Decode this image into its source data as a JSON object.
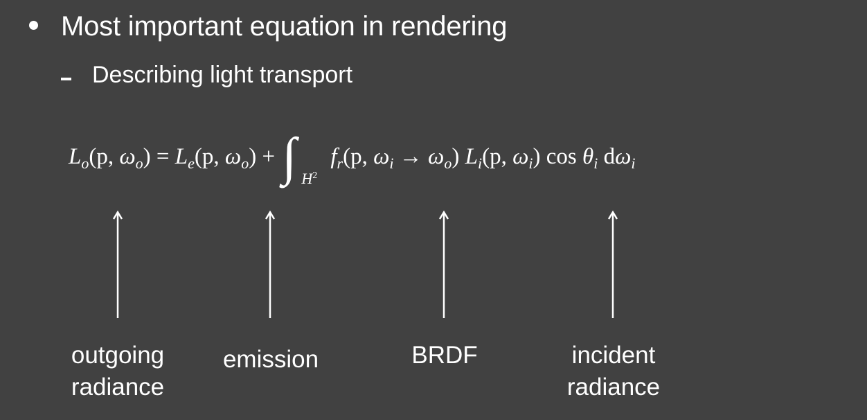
{
  "bullet": {
    "text": "Most important equation in rendering"
  },
  "sub_bullet": {
    "text": "Describing light transport"
  },
  "equation": {
    "Lo": "L",
    "o_sub": "o",
    "lhs_args_open": "(p, ",
    "omega": "ω",
    "omega_sub_o": "o",
    "close_paren": ")",
    "equals": " = ",
    "Le": "L",
    "e_sub": "e",
    "plus": " + ",
    "integral": "∫",
    "domain": "H",
    "domain_power": "2",
    "fr": "f",
    "r_sub": "r",
    "fr_args_open": "(p, ",
    "omega_i_sub": "i",
    "arrow": " → ",
    "Li": "L",
    "i_sub": "i",
    "cos": "cos ",
    "theta": "θ",
    "d": "d",
    "comma_sep": ", "
  },
  "labels": {
    "outgoing_line1": "outgoing",
    "outgoing_line2": "radiance",
    "emission": "emission",
    "brdf": "BRDF",
    "incident_line1": "incident",
    "incident_line2": "radiance"
  }
}
